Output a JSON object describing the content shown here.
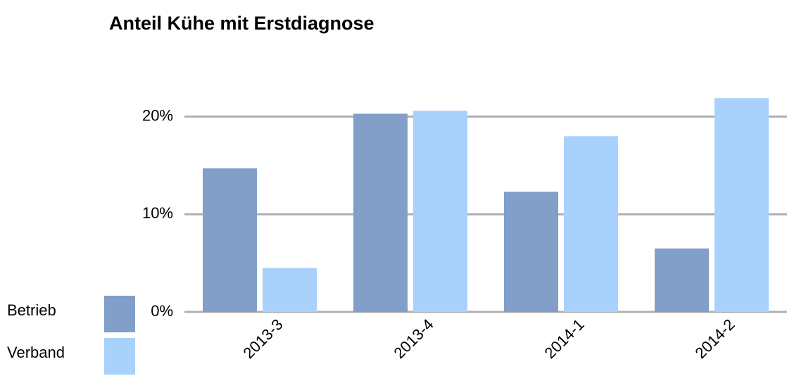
{
  "chart_data": {
    "type": "bar",
    "title": "Anteil Kühe mit Erstdiagnose",
    "categories": [
      "2013-3",
      "2013-4",
      "2014-1",
      "2014-2"
    ],
    "series": [
      {
        "name": "Betrieb",
        "color": "#819fc8",
        "values": [
          14.7,
          20.3,
          12.3,
          6.5
        ]
      },
      {
        "name": "Verband",
        "color": "#a8d1fc",
        "values": [
          4.5,
          20.6,
          18.0,
          21.9
        ]
      }
    ],
    "ylim": [
      0,
      22.5
    ],
    "yticks": [
      {
        "value": 0,
        "label": "0%"
      },
      {
        "value": 10,
        "label": "10%"
      },
      {
        "value": 20,
        "label": "20%"
      }
    ],
    "grid": true,
    "legend": "lower left"
  }
}
